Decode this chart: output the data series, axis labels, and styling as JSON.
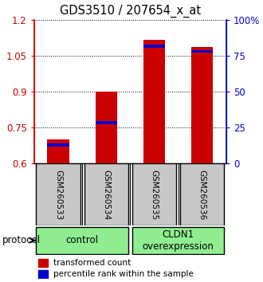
{
  "title": "GDS3510 / 207654_x_at",
  "samples": [
    "GSM260533",
    "GSM260534",
    "GSM260535",
    "GSM260536"
  ],
  "red_values": [
    0.7,
    0.9,
    1.115,
    1.085
  ],
  "blue_values": [
    0.678,
    0.77,
    1.09,
    1.068
  ],
  "y_min": 0.6,
  "y_max": 1.2,
  "y_ticks_left": [
    0.6,
    0.75,
    0.9,
    1.05,
    1.2
  ],
  "y_ticks_right": [
    0,
    25,
    50,
    75,
    100
  ],
  "groups": [
    {
      "label": "control",
      "samples": [
        0,
        1
      ],
      "color": "#90EE90"
    },
    {
      "label": "CLDN1\noverexpression",
      "samples": [
        2,
        3
      ],
      "color": "#90EE90"
    }
  ],
  "bar_color": "#CC0000",
  "blue_color": "#0000CC",
  "bar_width": 0.45,
  "protocol_label": "protocol",
  "legend1": "transformed count",
  "legend2": "percentile rank within the sample",
  "left_axis_color": "#CC0000",
  "right_axis_color": "#0000CC",
  "sample_box_color": "#C8C8C8",
  "title_fontsize": 10.5
}
